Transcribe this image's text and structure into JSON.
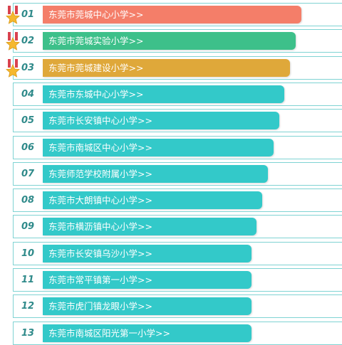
{
  "colors": {
    "rank1": "#f47e69",
    "rank2": "#3dc08a",
    "rank3": "#dfa83a",
    "default": "#33c9c9",
    "border": "#7fd3d3"
  },
  "items": [
    {
      "rank": "01",
      "name": "东莞市莞城中心小学>>",
      "level": 0.93,
      "medal": true,
      "color": "#f47e69"
    },
    {
      "rank": "02",
      "name": "东莞市莞城实验小学>>",
      "level": 0.91,
      "medal": true,
      "color": "#3dc08a"
    },
    {
      "rank": "03",
      "name": "东莞市莞城建设小学>>",
      "level": 0.89,
      "medal": true,
      "color": "#dfa83a"
    },
    {
      "rank": "04",
      "name": "东莞市东城中心小学>>",
      "level": 0.87,
      "medal": false,
      "color": "#33c9c9"
    },
    {
      "rank": "05",
      "name": "东莞市长安镇中心小学>>",
      "level": 0.85,
      "medal": false,
      "color": "#33c9c9"
    },
    {
      "rank": "06",
      "name": "东莞市南城区中心小学>>",
      "level": 0.83,
      "medal": false,
      "color": "#33c9c9"
    },
    {
      "rank": "07",
      "name": "东莞师范学校附属小学>>",
      "level": 0.81,
      "medal": false,
      "color": "#33c9c9"
    },
    {
      "rank": "08",
      "name": "东莞市大朗镇中心小学>>",
      "level": 0.79,
      "medal": false,
      "color": "#33c9c9"
    },
    {
      "rank": "09",
      "name": "东莞市横沥镇中心小学>>",
      "level": 0.77,
      "medal": false,
      "color": "#33c9c9"
    },
    {
      "rank": "10",
      "name": "东莞市长安镇乌沙小学>>",
      "level": 0.75,
      "medal": false,
      "color": "#33c9c9"
    },
    {
      "rank": "11",
      "name": "东莞市常平镇第一小学>>",
      "level": 0.75,
      "medal": false,
      "color": "#33c9c9"
    },
    {
      "rank": "12",
      "name": "东莞市虎门镇龙眼小学>>",
      "level": 0.75,
      "medal": false,
      "color": "#33c9c9"
    },
    {
      "rank": "13",
      "name": "东莞市南城区阳光第一小学>>",
      "level": 0.75,
      "medal": false,
      "color": "#33c9c9"
    }
  ]
}
